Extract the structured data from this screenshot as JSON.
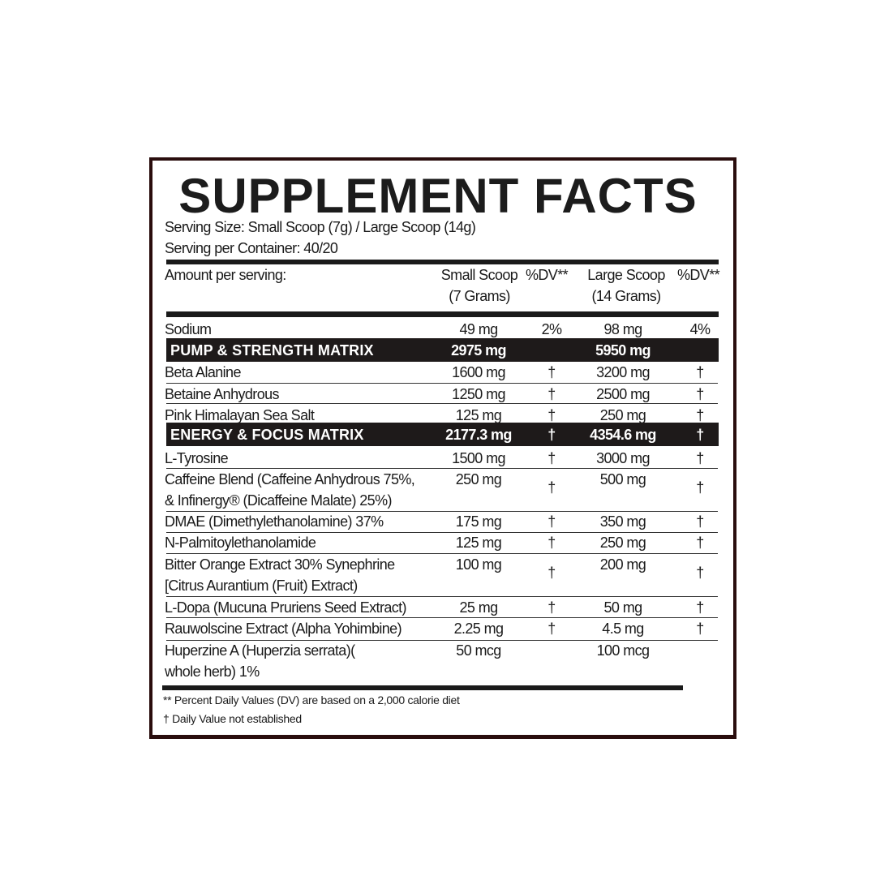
{
  "title": "SUPPLEMENT FACTS",
  "serving_size": "Serving Size: Small Scoop (7g) / Large Scoop (14g)",
  "servings_per_container": "Serving per Container: 40/20",
  "header": {
    "amount": "Amount per serving:",
    "small_line1": "Small Scoop",
    "small_line2": "(7 Grams)",
    "dv1": "%DV**",
    "large_line1": "Large Scoop",
    "large_line2": "(14 Grams)",
    "dv2": "%DV**"
  },
  "rows": [
    {
      "type": "item",
      "name": [
        "Sodium"
      ],
      "small": "49 mg",
      "dv_small": "2%",
      "large": "98 mg",
      "dv_large": "4%"
    },
    {
      "type": "band",
      "name": [
        "PUMP & STRENGTH MATRIX"
      ],
      "small": "2975 mg",
      "dv_small": "",
      "large": "5950 mg",
      "dv_large": ""
    },
    {
      "type": "item",
      "name": [
        "Beta Alanine"
      ],
      "small": "1600 mg",
      "dv_small": "†",
      "large": "3200 mg",
      "dv_large": "†"
    },
    {
      "type": "item",
      "name": [
        "Betaine Anhydrous"
      ],
      "small": "1250 mg",
      "dv_small": "†",
      "large": "2500 mg",
      "dv_large": "†"
    },
    {
      "type": "item",
      "name": [
        "Pink Himalayan Sea Salt"
      ],
      "small": "125 mg",
      "dv_small": "†",
      "large": "250 mg",
      "dv_large": "†"
    },
    {
      "type": "band",
      "name": [
        "ENERGY & FOCUS MATRIX"
      ],
      "small": "2177.3 mg",
      "dv_small": "†",
      "large": "4354.6 mg",
      "dv_large": "†"
    },
    {
      "type": "item",
      "name": [
        "L-Tyrosine"
      ],
      "small": "1500 mg",
      "dv_small": "†",
      "large": "3000 mg",
      "dv_large": "†"
    },
    {
      "type": "item",
      "name": [
        "Caffeine Blend (Caffeine Anhydrous 75%,",
        "& Infinergy® (Dicaffeine Malate) 25%)"
      ],
      "small": "250 mg",
      "dv_small": "†",
      "large": "500 mg",
      "dv_large": "†"
    },
    {
      "type": "item",
      "name": [
        "DMAE (Dimethylethanolamine) 37%"
      ],
      "small": "175 mg",
      "dv_small": "†",
      "large": "350 mg",
      "dv_large": "†"
    },
    {
      "type": "item",
      "name": [
        "N-Palmitoylethanolamide"
      ],
      "small": "125 mg",
      "dv_small": "†",
      "large": "250 mg",
      "dv_large": "†"
    },
    {
      "type": "item",
      "name": [
        "Bitter Orange Extract 30% Synephrine",
        "[Citrus Aurantium (Fruit) Extract)"
      ],
      "small": "100 mg",
      "dv_small": "†",
      "large": "200 mg",
      "dv_large": "†"
    },
    {
      "type": "item",
      "name": [
        "L-Dopa (Mucuna Pruriens Seed Extract)"
      ],
      "small": "25 mg",
      "dv_small": "†",
      "large": "50 mg",
      "dv_large": "†"
    },
    {
      "type": "item",
      "name": [
        "Rauwolscine Extract (Alpha Yohimbine)"
      ],
      "small": "2.25 mg",
      "dv_small": "†",
      "large": "4.5 mg",
      "dv_large": "†"
    },
    {
      "type": "item",
      "name": [
        "Huperzine A (Huperzia serrata)(",
        "whole herb) 1%"
      ],
      "small": "50 mcg",
      "dv_small": "",
      "large": "100 mcg",
      "dv_large": ""
    }
  ],
  "footnotes": [
    "** Percent Daily Values (DV) are based on a 2,000 calorie diet",
    "† Daily Value not established"
  ],
  "colors": {
    "frame": "#2a0d0d",
    "band": "#1e1a1a",
    "text": "#1a1a1a"
  }
}
